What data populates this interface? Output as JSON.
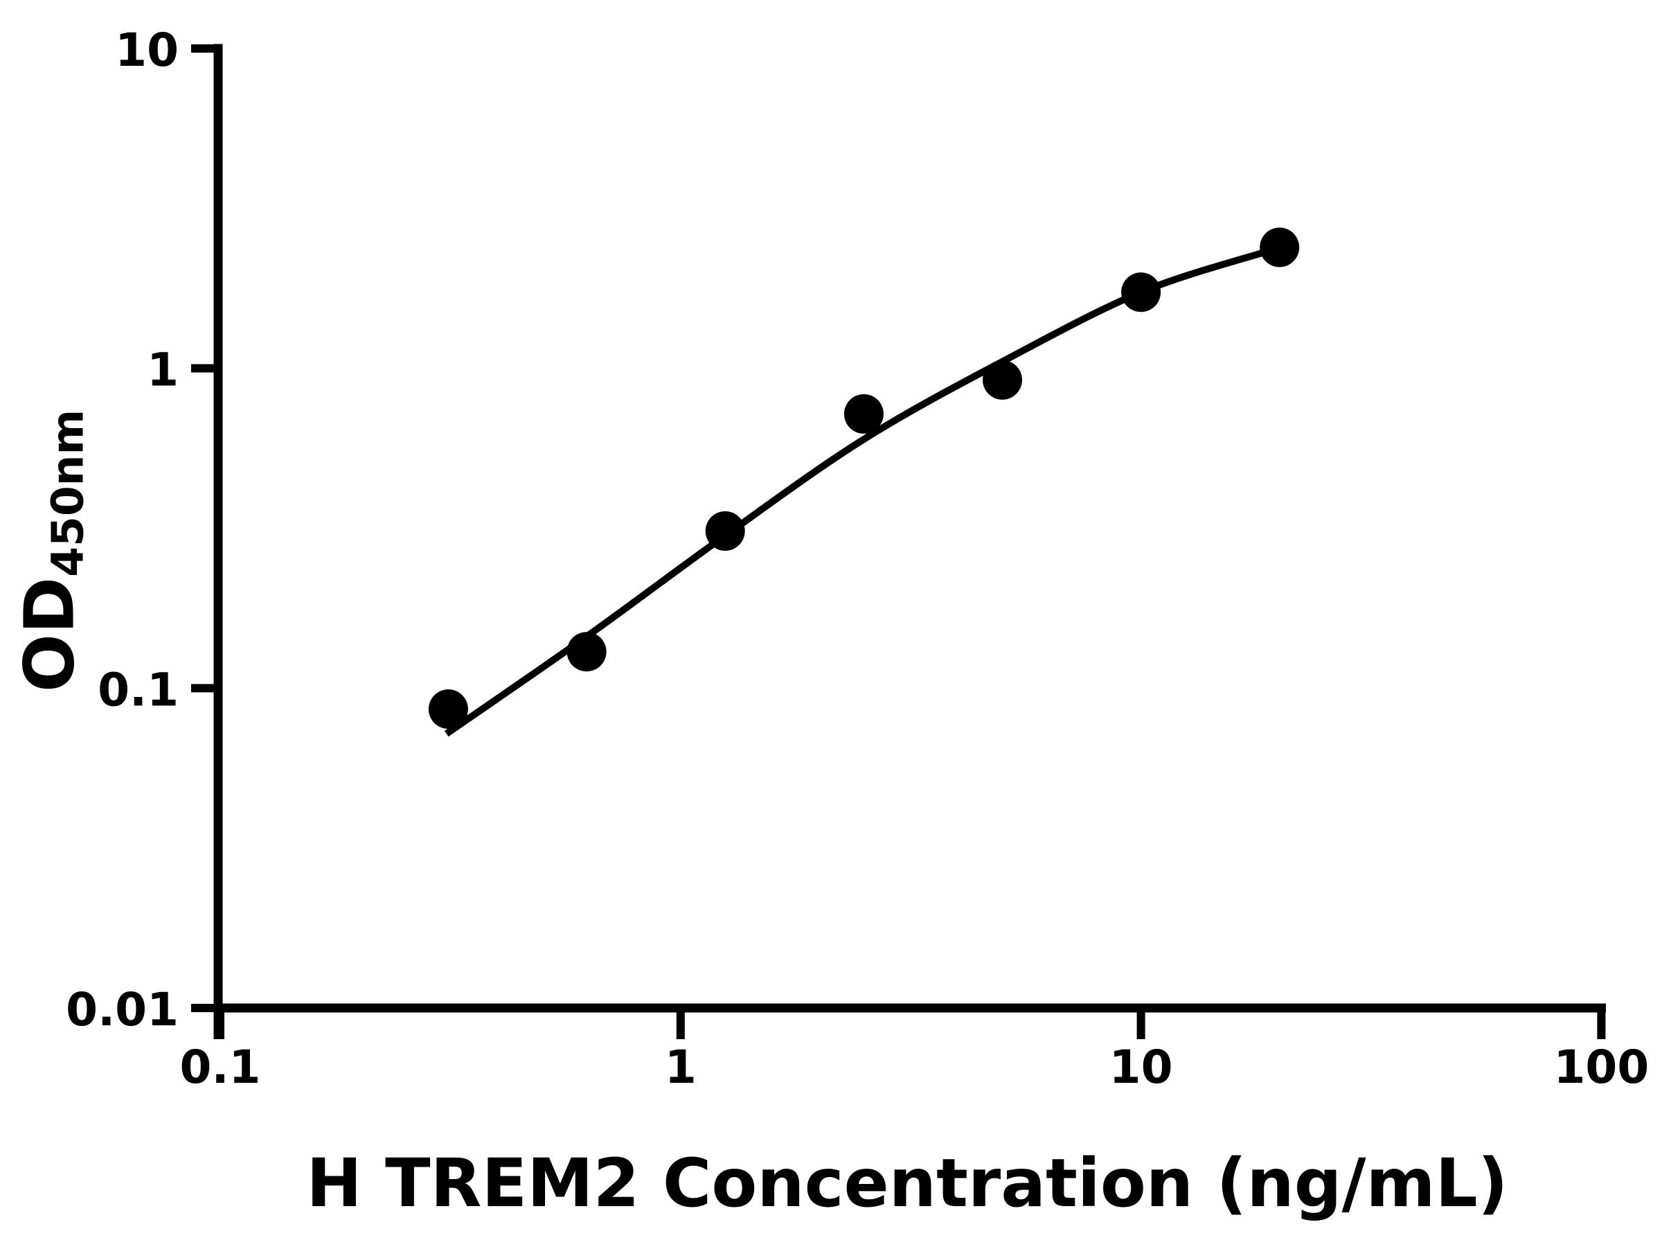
{
  "figure": {
    "background": "#ffffff",
    "x_axis_title": "H TREM2 Concentration (ng/mL)",
    "y_axis_title_main": "OD",
    "y_axis_title_subscript": "450nm"
  },
  "chart_data": {
    "type": "scatter",
    "title": "",
    "xlabel": "H TREM2 Concentration (ng/mL)",
    "ylabel": "OD450nm",
    "x_scale": "log",
    "y_scale": "log",
    "xlim": [
      0.1,
      100
    ],
    "ylim": [
      0.01,
      10
    ],
    "grid": false,
    "legend": "none",
    "x_ticks": {
      "values": [
        0.1,
        1,
        10,
        100
      ],
      "labels": [
        "0.1",
        "1",
        "10",
        "100"
      ]
    },
    "y_ticks": {
      "values": [
        10,
        1,
        0.1,
        0.01
      ],
      "labels": [
        "10",
        "1",
        "0.1",
        "0.01"
      ]
    },
    "series": [
      {
        "name": "standard-data-points",
        "type": "scatter",
        "marker": "filled-circle",
        "color": "#000000",
        "x": [
          0.313,
          0.625,
          1.25,
          2.5,
          5,
          10,
          20
        ],
        "y": [
          0.086,
          0.13,
          0.31,
          0.72,
          0.92,
          1.73,
          2.39
        ]
      },
      {
        "name": "fit-curve",
        "type": "line",
        "color": "#000000",
        "x": [
          0.31,
          0.625,
          1.25,
          2.5,
          5,
          10,
          18.6
        ],
        "y": [
          0.072,
          0.145,
          0.3,
          0.6,
          1.05,
          1.73,
          2.31
        ]
      }
    ],
    "colors": {
      "points": "#000000",
      "curve": "#000000",
      "axis": "#000000",
      "text": "#000000",
      "background": "#ffffff"
    }
  }
}
